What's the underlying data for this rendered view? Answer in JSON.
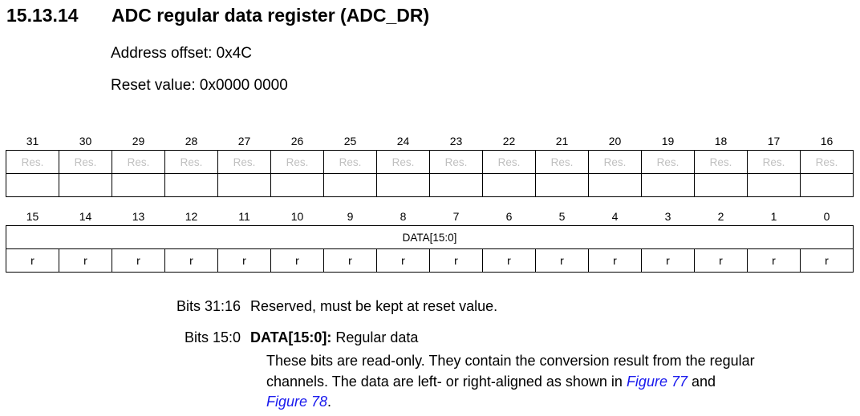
{
  "heading": {
    "number": "15.13.14",
    "title": "ADC regular data register (ADC_DR)"
  },
  "address_offset": "Address offset: 0x4C",
  "reset_value": "Reset value: 0x0000 0000",
  "register": {
    "high_bits": [
      "31",
      "30",
      "29",
      "28",
      "27",
      "26",
      "25",
      "24",
      "23",
      "22",
      "21",
      "20",
      "19",
      "18",
      "17",
      "16"
    ],
    "high_fields": [
      "Res.",
      "Res.",
      "Res.",
      "Res.",
      "Res.",
      "Res.",
      "Res.",
      "Res.",
      "Res.",
      "Res.",
      "Res.",
      "Res.",
      "Res.",
      "Res.",
      "Res.",
      "Res."
    ],
    "low_bits": [
      "15",
      "14",
      "13",
      "12",
      "11",
      "10",
      "9",
      "8",
      "7",
      "6",
      "5",
      "4",
      "3",
      "2",
      "1",
      "0"
    ],
    "low_field": "DATA[15:0]",
    "low_access": [
      "r",
      "r",
      "r",
      "r",
      "r",
      "r",
      "r",
      "r",
      "r",
      "r",
      "r",
      "r",
      "r",
      "r",
      "r",
      "r"
    ]
  },
  "descriptions": [
    {
      "bits": "Bits 31:16",
      "text": "Reserved, must be kept at reset value."
    },
    {
      "bits": "Bits 15:0",
      "field_name": "DATA[15:0]:",
      "field_desc": " Regular data",
      "line1": "These bits are read-only. They contain the conversion result from the regular",
      "line2_pre": "channels. The data are left- or right-aligned as shown in ",
      "link1": "Figure 77",
      "line2_post": " and",
      "link2": "Figure 78",
      "line3_post": "."
    }
  ]
}
